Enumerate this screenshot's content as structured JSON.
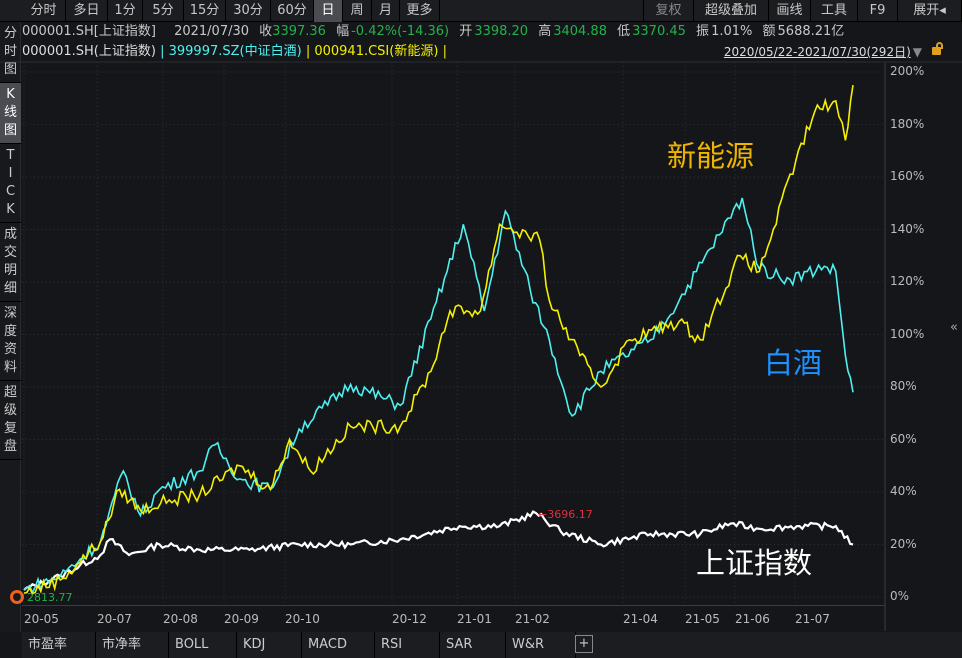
{
  "toolbar": {
    "periods": [
      "分时",
      "多日",
      "1分",
      "5分",
      "15分",
      "30分",
      "60分",
      "日",
      "周",
      "月",
      "更多"
    ],
    "active_period": "日",
    "right": [
      "复权",
      "超级叠加",
      "画线",
      "工具",
      "F9",
      "展开◂"
    ]
  },
  "quote": {
    "code": "000001.SH[上证指数]",
    "date": "2021/07/30",
    "close_label": "收",
    "close": "3397.36",
    "change_label": "幅",
    "change": "-0.42%(-14.36)",
    "open_label": "开",
    "open": "3398.20",
    "high_label": "高",
    "high": "3404.88",
    "low_label": "低",
    "low": "3370.45",
    "amp_label": "振",
    "amp": "1.01%",
    "amount_label": "额",
    "amount": "5688.21亿"
  },
  "legend": {
    "main": "000001.SH(上证指数)",
    "sep": "|",
    "s1": "399997.SZ(中证白酒)",
    "s2": "000941.CSI(新能源)"
  },
  "range": "2020/05/22-2021/07/30(292日)",
  "sidebar": [
    "分时图",
    "K线图",
    "TICK",
    "成交明细",
    "深度资料",
    "超级复盘"
  ],
  "sidebar_active": "K线图",
  "bottom_tabs": [
    "市盈率",
    "市净率",
    "BOLL",
    "KDJ",
    "MACD",
    "RSI",
    "SAR",
    "W&R",
    "+"
  ],
  "annotations": {
    "xinnengyuan": "新能源",
    "baijiu": "白酒",
    "shangzheng": "上证指数",
    "high_mark": "3696.17",
    "low_mark": "2813.77"
  },
  "colors": {
    "shangzheng": "#ffffff",
    "baijiu": "#4ff0f0",
    "xinnengyuan": "#f5f000",
    "baijiu_label": "#1e90ff",
    "xinnengyuan_label": "#f0b400",
    "high_mark": "#e0303a",
    "low_mark": "#22b24c"
  },
  "chart_data": {
    "type": "line",
    "ylim": [
      0,
      200
    ],
    "y_ticks": [
      "0%",
      "20%",
      "40%",
      "60%",
      "80%",
      "100%",
      "120%",
      "140%",
      "160%",
      "180%",
      "200%"
    ],
    "x_ticks": [
      "20-05",
      "20-07",
      "20-08",
      "20-09",
      "20-10",
      "20-12",
      "21-01",
      "21-02",
      "21-04",
      "21-05",
      "21-06",
      "21-07"
    ],
    "grid": true,
    "series": [
      {
        "name": "上证指数",
        "points": [
          [
            "2020-05-22",
            2.7
          ],
          [
            "2020-06-10",
            8
          ],
          [
            "2020-07-01",
            16
          ],
          [
            "2020-07-06",
            22
          ],
          [
            "2020-07-16",
            16
          ],
          [
            "2020-08-01",
            20
          ],
          [
            "2020-08-22",
            18
          ],
          [
            "2020-09-17",
            18
          ],
          [
            "2020-10-13",
            20
          ],
          [
            "2020-11-09",
            20
          ],
          [
            "2020-12-05",
            22
          ],
          [
            "2021-01-05",
            27
          ],
          [
            "2021-01-26",
            27
          ],
          [
            "2021-02-14",
            32
          ],
          [
            "2021-02-27",
            25
          ],
          [
            "2021-03-20",
            20
          ],
          [
            "2021-04-15",
            24
          ],
          [
            "2021-05-11",
            24
          ],
          [
            "2021-05-27",
            28
          ],
          [
            "2021-06-11",
            26
          ],
          [
            "2021-07-02",
            27
          ],
          [
            "2021-07-21",
            27
          ],
          [
            "2021-07-30",
            20
          ]
        ]
      },
      {
        "name": "中证白酒",
        "points": [
          [
            "2020-05-22",
            2.7
          ],
          [
            "2020-06-10",
            8
          ],
          [
            "2020-07-01",
            21
          ],
          [
            "2020-07-13",
            48
          ],
          [
            "2020-07-22",
            31
          ],
          [
            "2020-08-01",
            41
          ],
          [
            "2020-08-22",
            48
          ],
          [
            "2020-08-30",
            58
          ],
          [
            "2020-09-12",
            45
          ],
          [
            "2020-09-28",
            41
          ],
          [
            "2020-10-13",
            64
          ],
          [
            "2020-11-09",
            81
          ],
          [
            "2020-12-05",
            73
          ],
          [
            "2020-12-21",
            106
          ],
          [
            "2021-01-07",
            142
          ],
          [
            "2021-01-18",
            109
          ],
          [
            "2021-01-29",
            147
          ],
          [
            "2021-02-11",
            117
          ],
          [
            "2021-02-21",
            98
          ],
          [
            "2021-03-05",
            69
          ],
          [
            "2021-03-20",
            86
          ],
          [
            "2021-04-15",
            98
          ],
          [
            "2021-04-30",
            113
          ],
          [
            "2021-05-21",
            138
          ],
          [
            "2021-06-02",
            152
          ],
          [
            "2021-06-11",
            125
          ],
          [
            "2021-06-27",
            121
          ],
          [
            "2021-07-15",
            126
          ],
          [
            "2021-07-21",
            124
          ],
          [
            "2021-07-26",
            92
          ],
          [
            "2021-07-30",
            78
          ]
        ]
      },
      {
        "name": "新能源",
        "points": [
          [
            "2020-05-22",
            1.5
          ],
          [
            "2020-06-10",
            6.5
          ],
          [
            "2020-07-01",
            21
          ],
          [
            "2020-07-11",
            41
          ],
          [
            "2020-07-22",
            33
          ],
          [
            "2020-08-06",
            37
          ],
          [
            "2020-08-22",
            39
          ],
          [
            "2020-09-12",
            50
          ],
          [
            "2020-09-28",
            41
          ],
          [
            "2020-10-08",
            60
          ],
          [
            "2020-10-19",
            48
          ],
          [
            "2020-11-09",
            65
          ],
          [
            "2020-12-05",
            65
          ],
          [
            "2020-12-21",
            86
          ],
          [
            "2020-12-31",
            109
          ],
          [
            "2021-01-16",
            109
          ],
          [
            "2021-01-26",
            142
          ],
          [
            "2021-02-16",
            136
          ],
          [
            "2021-02-21",
            113
          ],
          [
            "2021-03-09",
            92
          ],
          [
            "2021-03-20",
            80
          ],
          [
            "2021-04-04",
            98
          ],
          [
            "2021-04-30",
            105
          ],
          [
            "2021-05-11",
            98
          ],
          [
            "2021-06-01",
            130
          ],
          [
            "2021-06-11",
            124
          ],
          [
            "2021-06-30",
            166
          ],
          [
            "2021-07-10",
            185
          ],
          [
            "2021-07-21",
            189
          ],
          [
            "2021-07-26",
            174
          ],
          [
            "2021-07-30",
            195
          ]
        ]
      }
    ]
  }
}
